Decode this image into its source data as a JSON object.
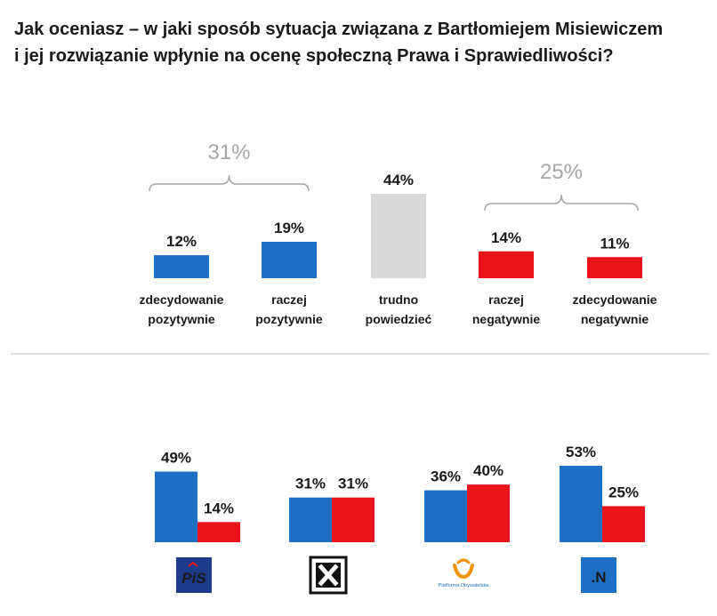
{
  "title": {
    "line1": "Jak oceniasz – w jaki sposób sytuacja związana z Bartłomiejem Misiewiczem",
    "line2": "i jej rozwiązanie wpłynie na ocenę społeczną Prawa i Sprawiedliwości?"
  },
  "colors": {
    "positive": "#1f6fc4",
    "neutral": "#d9d9d9",
    "negative": "#e8141a",
    "divider": "#c0c0c0",
    "group_label": "#a6a6a6"
  },
  "chart_data": [
    {
      "type": "bar",
      "title": "Jak oceniasz – w jaki sposób sytuacja związana z Bartłomiejem Misiewiczem i jej rozwiązanie wpłynie na ocenę społeczną Prawa i Sprawiedliwości?",
      "unit": "%",
      "ylim": [
        0,
        60
      ],
      "categories": [
        [
          "zdecydowanie",
          "pozytywnie"
        ],
        [
          "raczej",
          "pozytywnie"
        ],
        [
          "trudno",
          "powiedzieć"
        ],
        [
          "raczej",
          "negatywnie"
        ],
        [
          "zdecydowanie",
          "negatywnie"
        ]
      ],
      "values": [
        12,
        19,
        44,
        14,
        11
      ],
      "value_labels": [
        "12%",
        "19%",
        "44%",
        "14%",
        "11%"
      ],
      "tones": [
        "positive",
        "positive",
        "neutral",
        "negative",
        "negative"
      ],
      "groups": [
        {
          "label": "31%",
          "members": [
            0,
            1
          ]
        },
        {
          "label": "25%",
          "members": [
            3,
            4
          ]
        }
      ]
    },
    {
      "type": "bar",
      "unit": "%",
      "ylim": [
        0,
        60
      ],
      "categories": [
        "PiS",
        "Kukiz'15",
        "Platforma Obywatelska",
        "Nowoczesna"
      ],
      "series": [
        {
          "name": "pozytywnie",
          "values": [
            49,
            31,
            36,
            53
          ],
          "value_labels": [
            "49%",
            "31%",
            "36%",
            "53%"
          ]
        },
        {
          "name": "negatywnie",
          "values": [
            14,
            31,
            40,
            25
          ],
          "value_labels": [
            "14%",
            "31%",
            "40%",
            "25%"
          ]
        }
      ],
      "logos": [
        {
          "icon": "pis-logo-icon",
          "text": "PiS"
        },
        {
          "icon": "kukiz-logo-icon",
          "text": ""
        },
        {
          "icon": "platforma-logo-icon",
          "text": "Platforma Obywatelska"
        },
        {
          "icon": "nowoczesna-logo-icon",
          "text": ".N"
        }
      ]
    }
  ]
}
